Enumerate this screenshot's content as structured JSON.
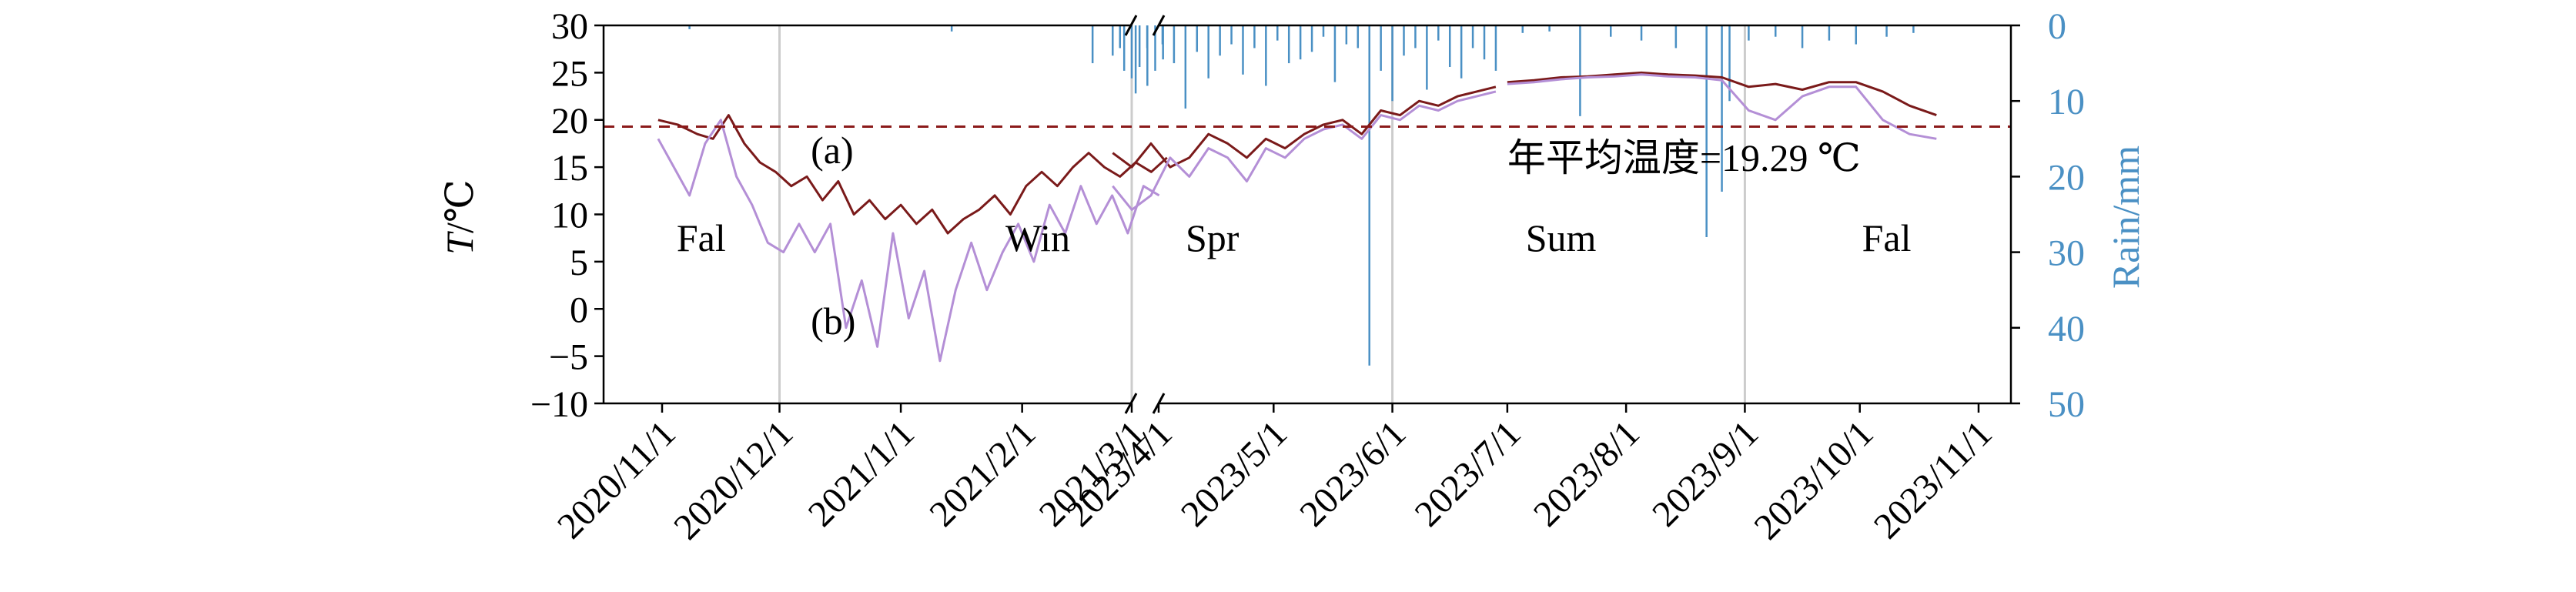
{
  "chart_data": {
    "type": "line",
    "title": "",
    "xlabel": "",
    "left_axis": {
      "label_italic": "T",
      "label_unit": "/℃",
      "range": [
        -10,
        30
      ],
      "ticks": [
        "30",
        "25",
        "20",
        "15",
        "10",
        "5",
        "0",
        "−5",
        "−10"
      ],
      "tick_values": [
        30,
        25,
        20,
        15,
        10,
        5,
        0,
        -5,
        -10
      ]
    },
    "right_axis": {
      "label": "Rain/mm",
      "range": [
        0,
        50
      ],
      "inverted": true,
      "ticks": [
        "0",
        "10",
        "20",
        "30",
        "40",
        "50"
      ],
      "tick_values": [
        0,
        10,
        20,
        30,
        40,
        50
      ],
      "color": "#4a90c4"
    },
    "x_axis": {
      "broken": true,
      "segment_1": [
        "2020-10-24",
        "2021-03-12"
      ],
      "segment_2": [
        "2023-03-18",
        "2023-11-14"
      ],
      "ticks": [
        {
          "label": "2020/11/1",
          "date": "2020-11-01"
        },
        {
          "label": "2020/12/1",
          "date": "2020-12-01"
        },
        {
          "label": "2021/1/1",
          "date": "2021-01-01"
        },
        {
          "label": "2021/2/1",
          "date": "2021-02-01"
        },
        {
          "label": "2021/3/1",
          "date": "2021-03-01"
        },
        {
          "label": "2023/4/1",
          "date": "2023-04-01"
        },
        {
          "label": "2023/5/1",
          "date": "2023-05-01"
        },
        {
          "label": "2023/6/1",
          "date": "2023-06-01"
        },
        {
          "label": "2023/7/1",
          "date": "2023-07-01"
        },
        {
          "label": "2023/8/1",
          "date": "2023-08-01"
        },
        {
          "label": "2023/9/1",
          "date": "2023-09-01"
        },
        {
          "label": "2023/10/1",
          "date": "2023-10-01"
        },
        {
          "label": "2023/11/1",
          "date": "2023-11-01"
        }
      ]
    },
    "season_dividers": [
      "2020-12-01",
      "2021-03-01",
      "2023-06-01",
      "2023-09-01"
    ],
    "season_labels": [
      {
        "text": "Fal",
        "date": "2020-11-11",
        "t": 7.5
      },
      {
        "text": "Win",
        "date": "2021-02-05",
        "t": 7.5
      },
      {
        "text": "Spr",
        "date": "2023-04-15",
        "t": 7.5
      },
      {
        "text": "Sum",
        "date": "2023-07-15",
        "t": 7.5
      },
      {
        "text": "Fal",
        "date": "2023-10-08",
        "t": 7.5
      }
    ],
    "annotations": [
      {
        "text": "(a)",
        "date": "2020-12-09",
        "t": 16.8
      },
      {
        "text": "(b)",
        "date": "2020-12-09",
        "t": -1.3
      },
      {
        "text": "年平均温度=19.29 ℃",
        "date": "2023-07-01",
        "t": 16.0
      }
    ],
    "mean_line": {
      "value": 19.29,
      "color": "#8b1a1a",
      "style": "dashed"
    },
    "series": [
      {
        "key": "a",
        "color": "#7a1a1a",
        "segments": [
          {
            "dates": [
              "2020-10-31",
              "2020-11-05",
              "2020-11-10",
              "2020-11-14",
              "2020-11-18",
              "2020-11-22",
              "2020-11-26",
              "2020-11-30",
              "2020-12-04",
              "2020-12-08",
              "2020-12-12",
              "2020-12-16",
              "2020-12-20",
              "2020-12-24",
              "2020-12-28",
              "2021-01-01",
              "2021-01-05",
              "2021-01-09",
              "2021-01-13",
              "2021-01-17",
              "2021-01-21",
              "2021-01-25",
              "2021-01-29",
              "2021-02-02",
              "2021-02-06",
              "2021-02-10",
              "2021-02-14",
              "2021-02-18",
              "2021-02-22",
              "2021-02-26",
              "2021-03-02",
              "2021-03-06",
              "2021-03-10"
            ],
            "values": [
              20.0,
              19.5,
              18.5,
              18.0,
              20.5,
              17.5,
              15.5,
              14.5,
              13.0,
              14.0,
              11.5,
              13.5,
              10.0,
              11.5,
              9.5,
              11.0,
              9.0,
              10.5,
              8.0,
              9.5,
              10.5,
              12.0,
              10.0,
              13.0,
              14.5,
              13.0,
              15.0,
              16.5,
              15.0,
              14.0,
              15.5,
              14.5,
              16.0
            ]
          },
          {
            "dates": [
              "2023-03-20",
              "2023-03-25",
              "2023-03-30",
              "2023-04-04",
              "2023-04-09",
              "2023-04-14",
              "2023-04-19",
              "2023-04-24",
              "2023-04-29",
              "2023-05-04",
              "2023-05-09",
              "2023-05-14",
              "2023-05-19",
              "2023-05-24",
              "2023-05-29",
              "2023-06-03",
              "2023-06-08",
              "2023-06-13",
              "2023-06-18",
              "2023-06-23",
              "2023-06-28"
            ],
            "values": [
              16.5,
              15.0,
              17.5,
              15.0,
              16.0,
              18.5,
              17.5,
              16.0,
              18.0,
              17.0,
              18.5,
              19.5,
              20.0,
              18.5,
              21.0,
              20.5,
              22.0,
              21.5,
              22.5,
              23.0,
              23.5
            ]
          },
          {
            "dates": [
              "2023-07-01",
              "2023-07-08",
              "2023-07-15",
              "2023-07-22",
              "2023-07-29",
              "2023-08-05",
              "2023-08-12",
              "2023-08-19",
              "2023-08-26",
              "2023-09-02",
              "2023-09-09",
              "2023-09-16",
              "2023-09-23",
              "2023-09-30",
              "2023-10-07",
              "2023-10-14",
              "2023-10-21"
            ],
            "values": [
              24.0,
              24.2,
              24.5,
              24.6,
              24.8,
              25.0,
              24.8,
              24.7,
              24.5,
              23.5,
              23.8,
              23.2,
              24.0,
              24.0,
              23.0,
              21.5,
              20.5
            ]
          }
        ]
      },
      {
        "key": "b",
        "color": "#b48fd6",
        "segments": [
          {
            "dates": [
              "2020-10-31",
              "2020-11-04",
              "2020-11-08",
              "2020-11-12",
              "2020-11-16",
              "2020-11-20",
              "2020-11-24",
              "2020-11-28",
              "2020-12-02",
              "2020-12-06",
              "2020-12-10",
              "2020-12-14",
              "2020-12-18",
              "2020-12-22",
              "2020-12-26",
              "2020-12-30",
              "2021-01-03",
              "2021-01-07",
              "2021-01-11",
              "2021-01-15",
              "2021-01-19",
              "2021-01-23",
              "2021-01-27",
              "2021-01-31",
              "2021-02-04",
              "2021-02-08",
              "2021-02-12",
              "2021-02-16",
              "2021-02-20",
              "2021-02-24",
              "2021-02-28",
              "2021-03-04",
              "2021-03-08"
            ],
            "values": [
              18.0,
              15.0,
              12.0,
              17.5,
              20.0,
              14.0,
              11.0,
              7.0,
              6.0,
              9.0,
              6.0,
              9.0,
              -2.0,
              3.0,
              -4.0,
              8.0,
              -1.0,
              4.0,
              -5.5,
              2.0,
              7.0,
              2.0,
              6.0,
              9.0,
              5.0,
              11.0,
              8.0,
              13.0,
              9.0,
              12.0,
              8.0,
              13.0,
              12.0
            ]
          },
          {
            "dates": [
              "2023-03-20",
              "2023-03-25",
              "2023-03-30",
              "2023-04-04",
              "2023-04-09",
              "2023-04-14",
              "2023-04-19",
              "2023-04-24",
              "2023-04-29",
              "2023-05-04",
              "2023-05-09",
              "2023-05-14",
              "2023-05-19",
              "2023-05-24",
              "2023-05-29",
              "2023-06-03",
              "2023-06-08",
              "2023-06-13",
              "2023-06-18",
              "2023-06-23",
              "2023-06-28"
            ],
            "values": [
              13.0,
              10.5,
              12.0,
              16.0,
              14.0,
              17.0,
              16.0,
              13.5,
              17.0,
              16.0,
              18.0,
              19.0,
              19.5,
              18.0,
              20.5,
              20.0,
              21.5,
              21.0,
              22.0,
              22.5,
              23.0
            ]
          },
          {
            "dates": [
              "2023-07-01",
              "2023-07-08",
              "2023-07-15",
              "2023-07-22",
              "2023-07-29",
              "2023-08-05",
              "2023-08-12",
              "2023-08-19",
              "2023-08-26",
              "2023-09-02",
              "2023-09-09",
              "2023-09-16",
              "2023-09-23",
              "2023-09-30",
              "2023-10-07",
              "2023-10-14",
              "2023-10-21"
            ],
            "values": [
              23.8,
              24.0,
              24.3,
              24.5,
              24.6,
              24.8,
              24.6,
              24.5,
              24.2,
              21.0,
              20.0,
              22.5,
              23.5,
              23.5,
              20.0,
              18.5,
              18.0
            ]
          }
        ]
      }
    ],
    "rain": {
      "color": "#4a90c4",
      "dates": [
        "2020-11-08",
        "2021-01-14",
        "2021-02-19",
        "2021-02-26",
        "2021-03-01",
        "2021-03-03",
        "2021-03-05",
        "2021-03-07",
        "2021-03-09",
        "2023-03-20",
        "2023-03-23",
        "2023-03-26",
        "2023-03-29",
        "2023-04-02",
        "2023-04-05",
        "2023-04-08",
        "2023-04-11",
        "2023-04-14",
        "2023-04-17",
        "2023-04-20",
        "2023-04-23",
        "2023-04-26",
        "2023-04-29",
        "2023-05-02",
        "2023-05-05",
        "2023-05-08",
        "2023-05-11",
        "2023-05-14",
        "2023-05-17",
        "2023-05-20",
        "2023-05-23",
        "2023-05-26",
        "2023-05-29",
        "2023-06-01",
        "2023-06-04",
        "2023-06-07",
        "2023-06-10",
        "2023-06-13",
        "2023-06-16",
        "2023-06-19",
        "2023-06-22",
        "2023-06-25",
        "2023-06-28",
        "2023-07-05",
        "2023-07-12",
        "2023-07-20",
        "2023-07-28",
        "2023-08-05",
        "2023-08-14",
        "2023-08-22",
        "2023-08-26",
        "2023-08-28",
        "2023-09-02",
        "2023-09-09",
        "2023-09-16",
        "2023-09-23",
        "2023-09-30",
        "2023-10-08",
        "2023-10-15"
      ],
      "values": [
        0.5,
        0.8,
        5.0,
        3.0,
        7.0,
        5.5,
        8.0,
        6.0,
        4.5,
        4.0,
        6.0,
        9.0,
        3.0,
        2.5,
        5.0,
        11.0,
        3.5,
        7.0,
        4.0,
        2.5,
        6.5,
        3.0,
        8.0,
        2.0,
        5.0,
        4.5,
        3.5,
        1.5,
        7.5,
        2.5,
        3.0,
        45.0,
        6.0,
        10.0,
        4.0,
        3.0,
        8.5,
        2.0,
        5.5,
        7.0,
        3.0,
        4.5,
        6.0,
        1.0,
        0.8,
        12.0,
        1.5,
        2.0,
        3.0,
        28.0,
        22.0,
        10.0,
        2.0,
        1.5,
        3.0,
        2.0,
        2.5,
        1.5,
        1.0
      ]
    }
  }
}
